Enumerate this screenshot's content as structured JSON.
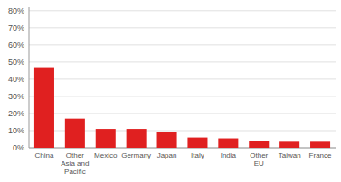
{
  "chart_data": {
    "type": "bar",
    "categories": [
      "China",
      "Other\nAsia and\nPacific",
      "Mexico",
      "Germany",
      "Japan",
      "Italy",
      "India",
      "Other\nEU",
      "Taiwan",
      "France"
    ],
    "values": [
      47,
      17,
      11,
      11,
      9,
      6,
      5.5,
      4,
      3.5,
      3.5
    ],
    "color": "#e02020",
    "ylim": [
      0,
      82
    ],
    "yticks": [
      {
        "value": 0,
        "label": "0%"
      },
      {
        "value": 10,
        "label": "10%"
      },
      {
        "value": 20,
        "label": "20%"
      },
      {
        "value": 30,
        "label": "30%"
      },
      {
        "value": 40,
        "label": "40%"
      },
      {
        "value": 50,
        "label": "50%"
      },
      {
        "value": 60,
        "label": "60%"
      },
      {
        "value": 70,
        "label": "70%"
      },
      {
        "value": 80,
        "label": "80%"
      }
    ],
    "grid": true
  }
}
